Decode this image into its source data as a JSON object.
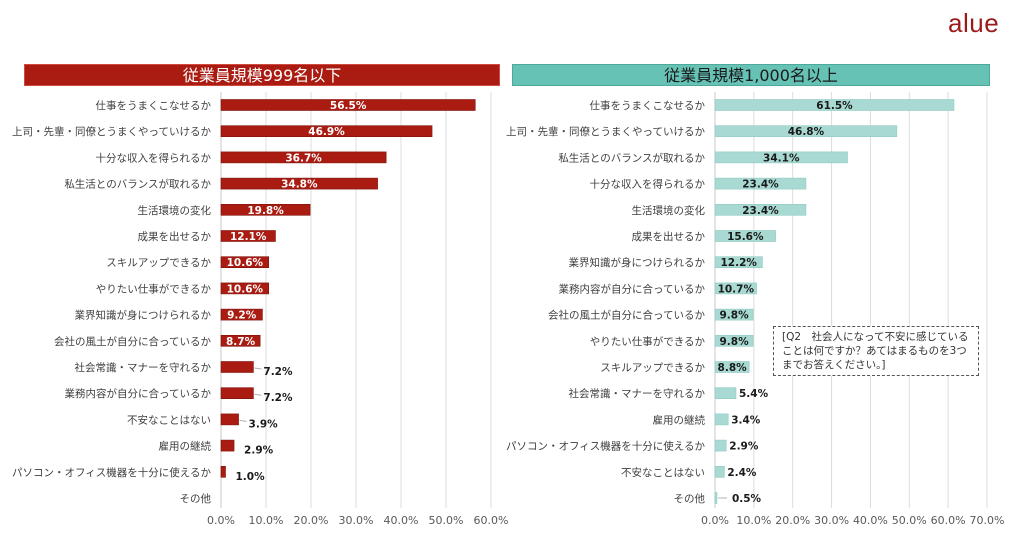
{
  "logo": "alue",
  "note": "[Q2　社会人になって不安に感じていることは何ですか？あてはまるものを3つまでお答えください。]",
  "chart_data": [
    {
      "type": "bar",
      "orientation": "horizontal",
      "title": "従業員規模999名以下",
      "bar_color": "#aa1c12",
      "title_bg": "#aa1c12",
      "label_color_inside": "#ffffff",
      "xlim": [
        0,
        60
      ],
      "xticks": [
        "0.0%",
        "10.0%",
        "20.0%",
        "30.0%",
        "40.0%",
        "50.0%",
        "60.0%"
      ],
      "grid": true,
      "categories": [
        "仕事をうまくこなせるか",
        "上司・先輩・同僚とうまくやっていけるか",
        "十分な収入を得られるか",
        "私生活とのバランスが取れるか",
        "生活環境の変化",
        "成果を出せるか",
        "スキルアップできるか",
        "やりたい仕事ができるか",
        "業界知識が身につけられるか",
        "会社の風土が自分に合っているか",
        "社会常識・マナーを守れるか",
        "業務内容が自分に合っているか",
        "不安なことはない",
        "雇用の継続",
        "パソコン・オフィス機器を十分に使えるか",
        "その他"
      ],
      "values": [
        56.5,
        46.9,
        36.7,
        34.8,
        19.8,
        12.1,
        10.6,
        10.6,
        9.2,
        8.7,
        7.2,
        7.2,
        3.9,
        2.9,
        1.0,
        null
      ],
      "labels": [
        "56.5%",
        "46.9%",
        "36.7%",
        "34.8%",
        "19.8%",
        "12.1%",
        "10.6%",
        "10.6%",
        "9.2%",
        "8.7%",
        "7.2%",
        "7.2%",
        "3.9%",
        "2.9%",
        "1.0%",
        ""
      ]
    },
    {
      "type": "bar",
      "orientation": "horizontal",
      "title": "従業員規模1,000名以上",
      "bar_color": "#a8dad3",
      "title_bg": "#67c2b6",
      "label_color_inside": "#1a1a1a",
      "xlim": [
        0,
        70
      ],
      "xticks": [
        "0.0%",
        "10.0%",
        "20.0%",
        "30.0%",
        "40.0%",
        "50.0%",
        "60.0%",
        "70.0%"
      ],
      "grid": true,
      "categories": [
        "仕事をうまくこなせるか",
        "上司・先輩・同僚とうまくやっていけるか",
        "私生活とのバランスが取れるか",
        "十分な収入を得られるか",
        "生活環境の変化",
        "成果を出せるか",
        "業界知識が身につけられるか",
        "業務内容が自分に合っているか",
        "会社の風土が自分に合っているか",
        "やりたい仕事ができるか",
        "スキルアップできるか",
        "社会常識・マナーを守れるか",
        "雇用の継続",
        "パソコン・オフィス機器を十分に使えるか",
        "不安なことはない",
        "その他"
      ],
      "values": [
        61.5,
        46.8,
        34.1,
        23.4,
        23.4,
        15.6,
        12.2,
        10.7,
        9.8,
        9.8,
        8.8,
        5.4,
        3.4,
        2.9,
        2.4,
        0.5
      ],
      "labels": [
        "61.5%",
        "46.8%",
        "34.1%",
        "23.4%",
        "23.4%",
        "15.6%",
        "12.2%",
        "10.7%",
        "9.8%",
        "9.8%",
        "8.8%",
        "5.4%",
        "3.4%",
        "2.9%",
        "2.4%",
        "0.5%"
      ]
    }
  ]
}
